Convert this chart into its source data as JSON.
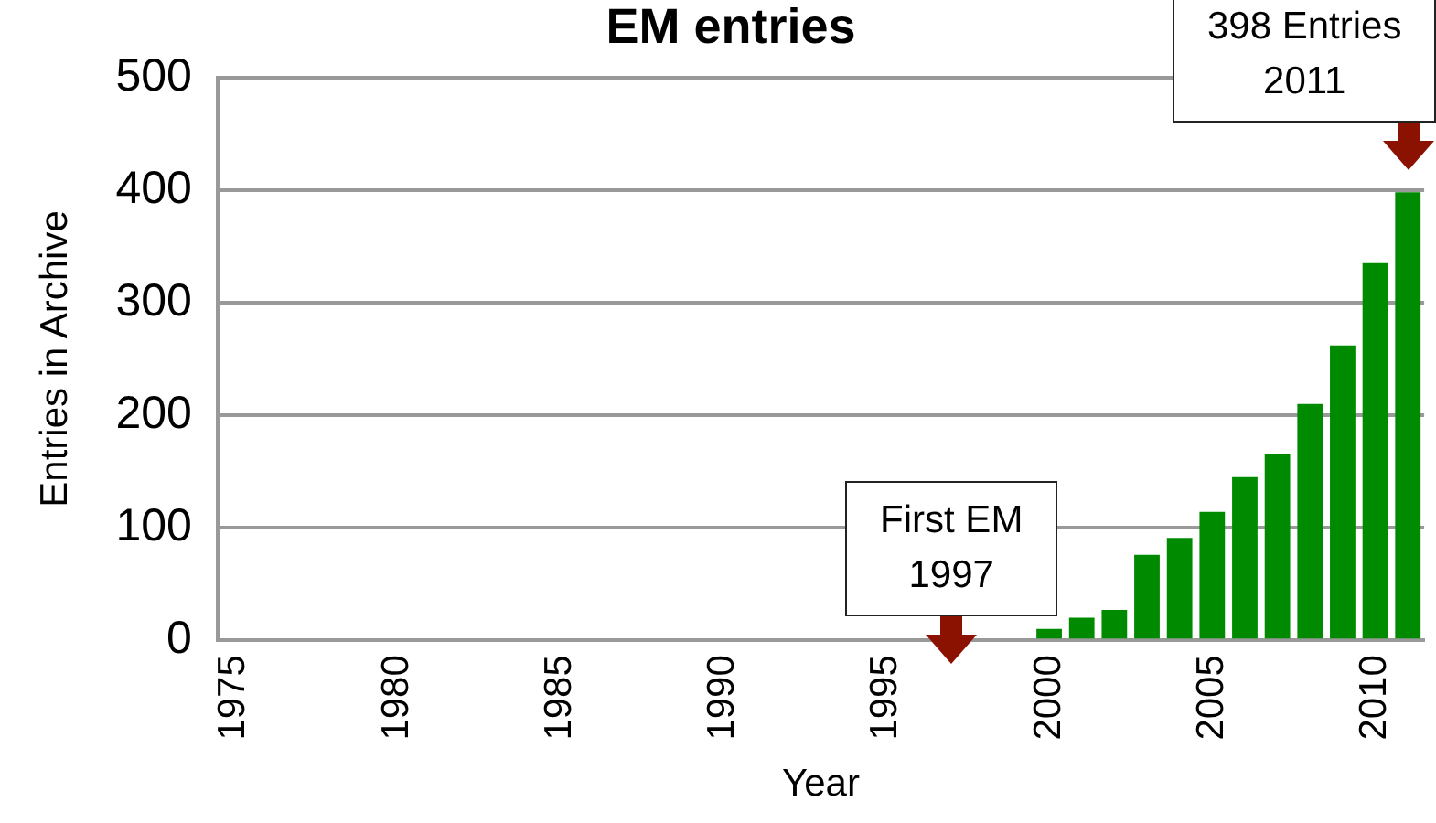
{
  "chart_data": {
    "type": "bar",
    "title": "EM entries",
    "xlabel": "Year",
    "ylabel": "Entries in Archive",
    "x": [
      2000,
      2001,
      2002,
      2003,
      2004,
      2005,
      2006,
      2007,
      2008,
      2009,
      2010,
      2011
    ],
    "values": [
      10,
      20,
      27,
      76,
      91,
      114,
      145,
      165,
      210,
      262,
      335,
      398
    ],
    "color": "#008a00",
    "xlim": [
      1974.5,
      2011.5
    ],
    "xticks": [
      1975,
      1980,
      1985,
      1990,
      1995,
      2000,
      2005,
      2010
    ],
    "ylim": [
      0,
      500
    ],
    "yticks": [
      0,
      100,
      200,
      300,
      400,
      500
    ],
    "grid": "y",
    "legend": false,
    "annotations": [
      {
        "text": "First EM\n1997",
        "x": 1997,
        "y": 0
      },
      {
        "text": "398 Entries\n2011",
        "x": 2011,
        "y": 398
      }
    ]
  }
}
